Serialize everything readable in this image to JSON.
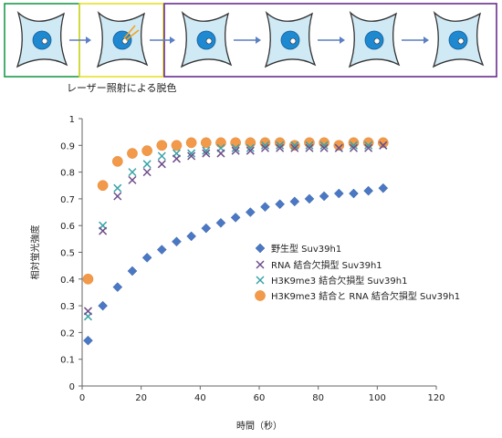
{
  "caption": "レーザー照射による脱色",
  "panels": [
    "before",
    "bleach",
    "recovery"
  ],
  "colors": {
    "panel_before": "#1e9b4a",
    "panel_bleach": "#e6df2a",
    "panel_recovery": "#6a2c91",
    "cell_fill": "#cfe9f5",
    "cell_outline": "#333333",
    "nucleus": "#1e88d0",
    "spot": "#f7a21b",
    "arrow": "#5b7fc4",
    "wild_type": "#4a78c4",
    "rna_mutant": "#6e4e8a",
    "h3k9_mutant": "#3aa3a8",
    "double_mutant": "#f29a4a",
    "axis": "#666666",
    "grid": "#dddddd"
  },
  "chart_data": {
    "type": "scatter",
    "xlabel": "時間（秒）",
    "ylabel": "相対蛍光強度",
    "xlim": [
      0,
      120
    ],
    "ylim": [
      0,
      1
    ],
    "xticks": [
      0,
      20,
      40,
      60,
      80,
      100,
      120
    ],
    "yticks": [
      0,
      0.1,
      0.2,
      0.3,
      0.4,
      0.5,
      0.6,
      0.7,
      0.8,
      0.9,
      1
    ],
    "ytick_labels": [
      "0",
      "0.1",
      "0.2",
      "0.3",
      "0.4",
      "0.5",
      "0.6",
      "0.7",
      "0.8",
      "0.9",
      "1"
    ],
    "grid": false,
    "legend_position": "right",
    "series": [
      {
        "name": "野生型 Suv39h1",
        "marker": "diamond",
        "x": [
          2,
          7,
          12,
          17,
          22,
          27,
          32,
          37,
          42,
          47,
          52,
          57,
          62,
          67,
          72,
          77,
          82,
          87,
          92,
          97,
          102
        ],
        "y": [
          0.17,
          0.3,
          0.37,
          0.43,
          0.48,
          0.51,
          0.54,
          0.56,
          0.59,
          0.61,
          0.63,
          0.65,
          0.67,
          0.68,
          0.69,
          0.7,
          0.71,
          0.72,
          0.72,
          0.73,
          0.74
        ]
      },
      {
        "name": "RNA 結合欠損型 Suv39h1",
        "marker": "x",
        "x": [
          2,
          7,
          12,
          17,
          22,
          27,
          32,
          37,
          42,
          47,
          52,
          57,
          62,
          67,
          72,
          77,
          82,
          87,
          92,
          97,
          102
        ],
        "y": [
          0.28,
          0.58,
          0.71,
          0.77,
          0.8,
          0.83,
          0.85,
          0.86,
          0.87,
          0.87,
          0.88,
          0.88,
          0.89,
          0.89,
          0.89,
          0.89,
          0.89,
          0.89,
          0.89,
          0.89,
          0.9
        ]
      },
      {
        "name": "H3K9me3 結合欠損型 Suv39h1",
        "marker": "x",
        "x": [
          2,
          7,
          12,
          17,
          22,
          27,
          32,
          37,
          42,
          47,
          52,
          57,
          62,
          67,
          72,
          77,
          82,
          87,
          92,
          97,
          102
        ],
        "y": [
          0.26,
          0.6,
          0.74,
          0.8,
          0.83,
          0.86,
          0.87,
          0.87,
          0.88,
          0.89,
          0.89,
          0.89,
          0.9,
          0.9,
          0.9,
          0.9,
          0.9,
          0.89,
          0.9,
          0.9,
          0.9
        ]
      },
      {
        "name": "H3K9me3 結合と RNA 結合欠損型 Suv39h1",
        "marker": "circle",
        "x": [
          2,
          7,
          12,
          17,
          22,
          27,
          32,
          37,
          42,
          47,
          52,
          57,
          62,
          67,
          72,
          77,
          82,
          87,
          92,
          97,
          102
        ],
        "y": [
          0.4,
          0.75,
          0.84,
          0.87,
          0.88,
          0.9,
          0.9,
          0.91,
          0.91,
          0.91,
          0.91,
          0.91,
          0.91,
          0.91,
          0.9,
          0.91,
          0.91,
          0.9,
          0.91,
          0.91,
          0.91
        ]
      }
    ]
  }
}
